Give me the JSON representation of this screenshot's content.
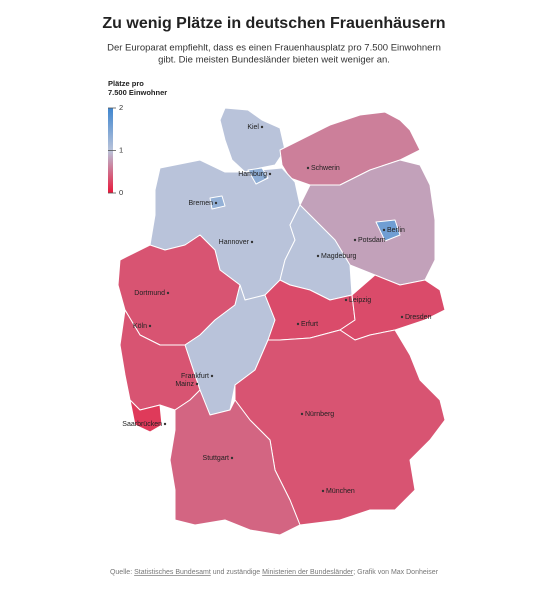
{
  "title": "Zu wenig Plätze in deutschen Frauenhäusern",
  "subtitle": [
    "Der Europarat empfiehlt, dass es einen Frauenhausplatz pro 7.500 Einwohnern",
    "gibt. Die meisten Bundesländer bieten weit weniger an."
  ],
  "legend": {
    "title": [
      "Plätze pro",
      "7.500 Einwohner"
    ],
    "range": [
      0,
      2
    ],
    "ticks": [
      0,
      1,
      2
    ],
    "colors": [
      "#e8183a",
      "#b9c3da",
      "#3f86cf"
    ]
  },
  "regions": [
    {
      "value": 1.0
    },
    {
      "value": 1.35
    },
    {
      "value": 0.6
    },
    {
      "value": 1.3
    },
    {
      "value": 1.0
    },
    {
      "value": 1.6
    },
    {
      "value": 0.8
    },
    {
      "value": 1.0
    },
    {
      "value": 0.35
    },
    {
      "value": 1.0
    },
    {
      "value": 0.3
    },
    {
      "value": 0.3
    },
    {
      "value": 0.35
    },
    {
      "value": 0.2
    },
    {
      "value": 0.35
    },
    {
      "value": 0.45
    }
  ],
  "cities": [
    "Kiel",
    "Hamburg",
    "Schwerin",
    "Bremen",
    "Berlin",
    "Potsdam",
    "Hannover",
    "Magdeburg",
    "Dortmund",
    "Leipzig",
    "Dresden",
    "Köln",
    "Erfurt",
    "Frankfurt",
    "Mainz",
    "Saarbrücken",
    "Nürnberg",
    "Stuttgart",
    "München"
  ],
  "source": {
    "prefix": "Quelle:",
    "link1": "Statistisches Bundesamt",
    "middle": "und zuständige",
    "link2": "Ministerien der Bundesländer",
    "suffix": "; Grafik von Max Donheiser"
  }
}
